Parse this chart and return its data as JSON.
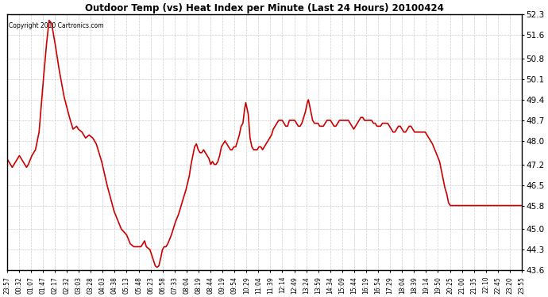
{
  "title": "Outdoor Temp (vs) Heat Index per Minute (Last 24 Hours) 20100424",
  "copyright": "Copyright 2010 Cartronics.com",
  "line_color": "#cc0000",
  "bg_color": "#ffffff",
  "plot_bg_color": "#ffffff",
  "grid_color": "#c8c8c8",
  "ylim": [
    43.6,
    52.3
  ],
  "yticks": [
    43.6,
    44.3,
    45.0,
    45.8,
    46.5,
    47.2,
    48.0,
    48.7,
    49.4,
    50.1,
    50.8,
    51.6,
    52.3
  ],
  "xtick_labels": [
    "23:57",
    "00:32",
    "01:07",
    "01:47",
    "02:17",
    "02:32",
    "03:03",
    "03:28",
    "04:03",
    "04:38",
    "05:13",
    "05:48",
    "06:23",
    "06:58",
    "07:33",
    "08:04",
    "08:19",
    "08:44",
    "09:19",
    "09:54",
    "10:29",
    "11:04",
    "11:39",
    "12:14",
    "12:49",
    "13:24",
    "13:59",
    "14:34",
    "15:09",
    "15:44",
    "16:19",
    "16:54",
    "17:29",
    "18:04",
    "18:39",
    "19:14",
    "19:50",
    "20:25",
    "21:00",
    "21:35",
    "22:10",
    "22:45",
    "23:20",
    "23:55"
  ],
  "keypoints": [
    [
      0,
      47.4
    ],
    [
      15,
      47.1
    ],
    [
      25,
      47.3
    ],
    [
      35,
      47.5
    ],
    [
      45,
      47.3
    ],
    [
      55,
      47.1
    ],
    [
      60,
      47.2
    ],
    [
      70,
      47.5
    ],
    [
      80,
      47.7
    ],
    [
      90,
      48.3
    ],
    [
      100,
      49.8
    ],
    [
      110,
      51.2
    ],
    [
      118,
      52.1
    ],
    [
      125,
      52.0
    ],
    [
      135,
      51.3
    ],
    [
      145,
      50.5
    ],
    [
      160,
      49.5
    ],
    [
      175,
      48.8
    ],
    [
      185,
      48.4
    ],
    [
      195,
      48.5
    ],
    [
      200,
      48.4
    ],
    [
      210,
      48.3
    ],
    [
      220,
      48.1
    ],
    [
      230,
      48.2
    ],
    [
      240,
      48.1
    ],
    [
      250,
      47.9
    ],
    [
      265,
      47.3
    ],
    [
      280,
      46.5
    ],
    [
      300,
      45.6
    ],
    [
      320,
      45.0
    ],
    [
      335,
      44.8
    ],
    [
      345,
      44.5
    ],
    [
      355,
      44.4
    ],
    [
      362,
      44.4
    ],
    [
      370,
      44.4
    ],
    [
      375,
      44.4
    ],
    [
      380,
      44.5
    ],
    [
      385,
      44.6
    ],
    [
      390,
      44.4
    ],
    [
      400,
      44.3
    ],
    [
      408,
      44.0
    ],
    [
      415,
      43.75
    ],
    [
      420,
      43.7
    ],
    [
      425,
      43.75
    ],
    [
      430,
      44.0
    ],
    [
      435,
      44.3
    ],
    [
      440,
      44.4
    ],
    [
      445,
      44.4
    ],
    [
      450,
      44.5
    ],
    [
      460,
      44.8
    ],
    [
      470,
      45.2
    ],
    [
      480,
      45.5
    ],
    [
      490,
      45.9
    ],
    [
      500,
      46.3
    ],
    [
      510,
      46.8
    ],
    [
      515,
      47.2
    ],
    [
      520,
      47.5
    ],
    [
      525,
      47.8
    ],
    [
      530,
      47.9
    ],
    [
      535,
      47.7
    ],
    [
      540,
      47.6
    ],
    [
      545,
      47.6
    ],
    [
      550,
      47.7
    ],
    [
      555,
      47.6
    ],
    [
      560,
      47.5
    ],
    [
      565,
      47.4
    ],
    [
      570,
      47.2
    ],
    [
      575,
      47.3
    ],
    [
      580,
      47.2
    ],
    [
      585,
      47.2
    ],
    [
      590,
      47.3
    ],
    [
      595,
      47.5
    ],
    [
      600,
      47.8
    ],
    [
      605,
      47.9
    ],
    [
      610,
      48.0
    ],
    [
      615,
      47.9
    ],
    [
      620,
      47.8
    ],
    [
      625,
      47.7
    ],
    [
      630,
      47.7
    ],
    [
      635,
      47.8
    ],
    [
      640,
      47.8
    ],
    [
      645,
      48.0
    ],
    [
      650,
      48.2
    ],
    [
      655,
      48.5
    ],
    [
      660,
      48.6
    ],
    [
      665,
      49.1
    ],
    [
      668,
      49.3
    ],
    [
      670,
      49.2
    ],
    [
      675,
      48.9
    ],
    [
      680,
      48.1
    ],
    [
      685,
      47.8
    ],
    [
      690,
      47.7
    ],
    [
      695,
      47.7
    ],
    [
      700,
      47.7
    ],
    [
      705,
      47.8
    ],
    [
      710,
      47.8
    ],
    [
      715,
      47.7
    ],
    [
      720,
      47.8
    ],
    [
      725,
      47.9
    ],
    [
      730,
      48.0
    ],
    [
      735,
      48.1
    ],
    [
      740,
      48.2
    ],
    [
      745,
      48.4
    ],
    [
      750,
      48.5
    ],
    [
      755,
      48.6
    ],
    [
      760,
      48.7
    ],
    [
      765,
      48.7
    ],
    [
      770,
      48.7
    ],
    [
      775,
      48.6
    ],
    [
      780,
      48.5
    ],
    [
      785,
      48.5
    ],
    [
      790,
      48.7
    ],
    [
      795,
      48.7
    ],
    [
      800,
      48.7
    ],
    [
      805,
      48.7
    ],
    [
      810,
      48.6
    ],
    [
      815,
      48.5
    ],
    [
      820,
      48.5
    ],
    [
      825,
      48.6
    ],
    [
      830,
      48.8
    ],
    [
      835,
      49.0
    ],
    [
      840,
      49.3
    ],
    [
      843,
      49.4
    ],
    [
      845,
      49.3
    ],
    [
      850,
      49.0
    ],
    [
      855,
      48.7
    ],
    [
      860,
      48.6
    ],
    [
      865,
      48.6
    ],
    [
      870,
      48.6
    ],
    [
      875,
      48.5
    ],
    [
      880,
      48.5
    ],
    [
      885,
      48.5
    ],
    [
      890,
      48.6
    ],
    [
      895,
      48.7
    ],
    [
      900,
      48.7
    ],
    [
      905,
      48.7
    ],
    [
      910,
      48.6
    ],
    [
      915,
      48.5
    ],
    [
      920,
      48.5
    ],
    [
      925,
      48.6
    ],
    [
      930,
      48.7
    ],
    [
      935,
      48.7
    ],
    [
      940,
      48.7
    ],
    [
      945,
      48.7
    ],
    [
      950,
      48.7
    ],
    [
      955,
      48.7
    ],
    [
      960,
      48.6
    ],
    [
      965,
      48.5
    ],
    [
      970,
      48.4
    ],
    [
      975,
      48.5
    ],
    [
      980,
      48.6
    ],
    [
      985,
      48.7
    ],
    [
      990,
      48.8
    ],
    [
      995,
      48.8
    ],
    [
      1000,
      48.7
    ],
    [
      1005,
      48.7
    ],
    [
      1010,
      48.7
    ],
    [
      1015,
      48.7
    ],
    [
      1020,
      48.7
    ],
    [
      1025,
      48.6
    ],
    [
      1030,
      48.6
    ],
    [
      1035,
      48.5
    ],
    [
      1040,
      48.5
    ],
    [
      1045,
      48.5
    ],
    [
      1050,
      48.6
    ],
    [
      1055,
      48.6
    ],
    [
      1060,
      48.6
    ],
    [
      1065,
      48.6
    ],
    [
      1070,
      48.5
    ],
    [
      1075,
      48.4
    ],
    [
      1080,
      48.3
    ],
    [
      1085,
      48.3
    ],
    [
      1090,
      48.4
    ],
    [
      1095,
      48.5
    ],
    [
      1100,
      48.5
    ],
    [
      1105,
      48.4
    ],
    [
      1110,
      48.3
    ],
    [
      1115,
      48.3
    ],
    [
      1120,
      48.4
    ],
    [
      1125,
      48.5
    ],
    [
      1130,
      48.5
    ],
    [
      1135,
      48.4
    ],
    [
      1140,
      48.3
    ],
    [
      1145,
      48.3
    ],
    [
      1150,
      48.3
    ],
    [
      1155,
      48.3
    ],
    [
      1160,
      48.3
    ],
    [
      1165,
      48.3
    ],
    [
      1170,
      48.3
    ],
    [
      1175,
      48.2
    ],
    [
      1180,
      48.1
    ],
    [
      1185,
      48.0
    ],
    [
      1190,
      47.9
    ],
    [
      1200,
      47.6
    ],
    [
      1210,
      47.3
    ],
    [
      1215,
      47.0
    ],
    [
      1220,
      46.7
    ],
    [
      1225,
      46.4
    ],
    [
      1230,
      46.2
    ],
    [
      1235,
      45.9
    ],
    [
      1240,
      45.8
    ],
    [
      1440,
      45.8
    ]
  ]
}
